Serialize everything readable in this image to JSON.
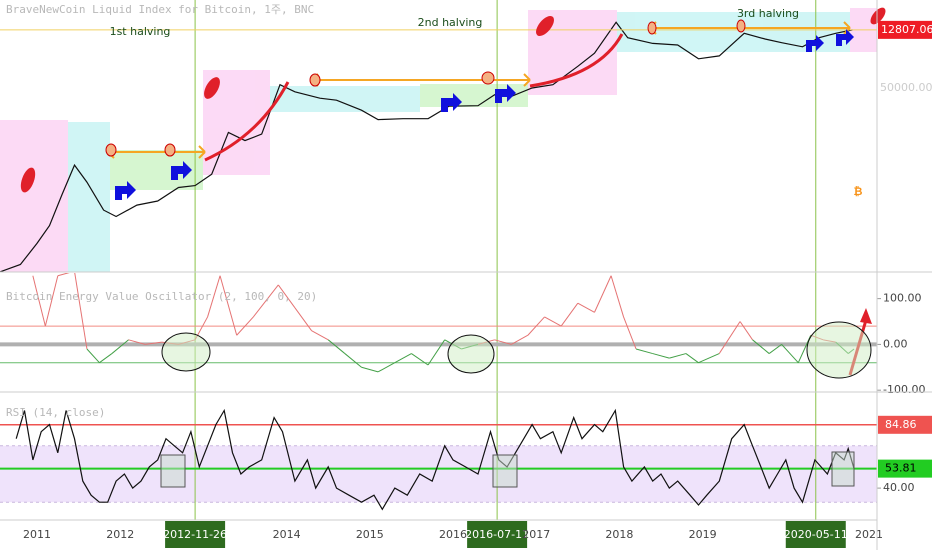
{
  "chart_data": [
    {
      "type": "line",
      "title": "BraveNewCoin Liquid Index for Bitcoin, 1주, BNC",
      "annotations": [
        "1st halving",
        "2nd halving",
        "3rd halving"
      ],
      "axis_note": "50000.00",
      "icon": "₿",
      "log_scale": true,
      "color": "#111111",
      "xlim": [
        2010.555,
        2021.096
      ],
      "ylim": [
        0.25,
        48800
      ],
      "x": [
        2010.55,
        2010.8,
        2011.0,
        2011.15,
        2011.3,
        2011.45,
        2011.6,
        2011.8,
        2011.95,
        2012.2,
        2012.45,
        2012.7,
        2012.9,
        2013.1,
        2013.3,
        2013.5,
        2013.7,
        2013.92,
        2014.1,
        2014.4,
        2014.6,
        2014.9,
        2015.1,
        2015.4,
        2015.7,
        2015.95,
        2016.3,
        2016.5,
        2016.7,
        2016.95,
        2017.2,
        2017.5,
        2017.7,
        2017.96,
        2018.1,
        2018.4,
        2018.7,
        2018.95,
        2019.2,
        2019.5,
        2019.75,
        2019.95,
        2020.2,
        2020.4,
        2020.6,
        2020.8
      ],
      "values": [
        0.25,
        0.35,
        0.9,
        2,
        8,
        30,
        14,
        4,
        3,
        5,
        6,
        11,
        12,
        20,
        130,
        90,
        120,
        1100,
        800,
        600,
        550,
        350,
        230,
        240,
        240,
        420,
        430,
        700,
        650,
        950,
        1100,
        2500,
        4500,
        18000,
        9000,
        7000,
        6500,
        3500,
        4000,
        11000,
        8500,
        7200,
        6000,
        9000,
        11000,
        12807.06
      ]
    },
    {
      "type": "line",
      "title": "Bitcoin Energy Value Oscillator (2, 100, 0, 20)",
      "xlim": [
        2010.555,
        2021.096
      ],
      "ylim": [
        -104,
        156
      ],
      "yticks": [
        {
          "value": 100,
          "label": "100.00"
        },
        {
          "value": 0,
          "label": "0.00"
        },
        {
          "value": -100,
          "label": "-100.00"
        }
      ],
      "line_colors": {
        "above": "#e57373",
        "below": "#43a047"
      },
      "levels": [
        {
          "value": 40,
          "color": "#f28b82"
        },
        {
          "value": 0,
          "color": "#b0b0b0"
        },
        {
          "value": -40,
          "color": "#66bb6a"
        }
      ],
      "x": [
        2010.95,
        2011.1,
        2011.25,
        2011.45,
        2011.6,
        2011.75,
        2011.9,
        2012.1,
        2012.3,
        2012.5,
        2012.7,
        2012.9,
        2013.05,
        2013.2,
        2013.4,
        2013.6,
        2013.9,
        2014.1,
        2014.3,
        2014.5,
        2014.7,
        2014.9,
        2015.1,
        2015.3,
        2015.5,
        2015.7,
        2015.9,
        2016.1,
        2016.3,
        2016.5,
        2016.7,
        2016.9,
        2017.1,
        2017.3,
        2017.5,
        2017.7,
        2017.9,
        2018.05,
        2018.2,
        2018.4,
        2018.6,
        2018.8,
        2018.95,
        2019.2,
        2019.45,
        2019.6,
        2019.8,
        2019.95,
        2020.15,
        2020.3,
        2020.45,
        2020.6,
        2020.75,
        2020.82
      ],
      "values": [
        150,
        40,
        150,
        160,
        -10,
        -40,
        -20,
        10,
        0,
        5,
        0,
        10,
        60,
        150,
        20,
        60,
        130,
        80,
        30,
        10,
        -20,
        -50,
        -60,
        -40,
        -20,
        -45,
        10,
        -10,
        0,
        10,
        0,
        20,
        60,
        40,
        90,
        70,
        150,
        60,
        -10,
        -20,
        -30,
        -20,
        -40,
        -20,
        50,
        10,
        -20,
        0,
        -40,
        20,
        10,
        5,
        -20,
        -10
      ]
    },
    {
      "type": "line",
      "title": "RSI (14, close)",
      "color": "#111111",
      "xlim": [
        2010.555,
        2021.096
      ],
      "ylim": [
        17.4,
        107.4
      ],
      "yticks": [
        {
          "value": 40,
          "label": "40.00"
        }
      ],
      "upper_level": 84.86,
      "upper_color": "#ef5350",
      "last_color": "#22cc22",
      "band": [
        30,
        70
      ],
      "band_color": "#efe3fb",
      "xticks": [
        2011,
        2012,
        2014,
        2015,
        2016,
        2017,
        2018,
        2019,
        2021
      ],
      "x_highlights": [
        {
          "value": 2012.9,
          "label": "2012-11-26"
        },
        {
          "value": 2016.53,
          "label": "2016-07-11"
        },
        {
          "value": 2020.36,
          "label": "2020-05-11"
        }
      ],
      "x": [
        2010.75,
        2010.85,
        2010.95,
        2011.05,
        2011.15,
        2011.25,
        2011.35,
        2011.45,
        2011.55,
        2011.65,
        2011.75,
        2011.85,
        2011.95,
        2012.05,
        2012.15,
        2012.25,
        2012.35,
        2012.45,
        2012.55,
        2012.65,
        2012.75,
        2012.85,
        2012.95,
        2013.05,
        2013.15,
        2013.25,
        2013.35,
        2013.45,
        2013.55,
        2013.7,
        2013.85,
        2013.95,
        2014.1,
        2014.25,
        2014.35,
        2014.5,
        2014.6,
        2014.75,
        2014.9,
        2015.05,
        2015.15,
        2015.3,
        2015.45,
        2015.6,
        2015.75,
        2015.9,
        2016.0,
        2016.15,
        2016.3,
        2016.45,
        2016.55,
        2016.65,
        2016.8,
        2016.95,
        2017.05,
        2017.2,
        2017.3,
        2017.45,
        2017.55,
        2017.7,
        2017.8,
        2017.95,
        2018.05,
        2018.15,
        2018.3,
        2018.4,
        2018.5,
        2018.6,
        2018.7,
        2018.85,
        2018.95,
        2019.05,
        2019.2,
        2019.35,
        2019.5,
        2019.6,
        2019.7,
        2019.8,
        2019.9,
        2020.0,
        2020.1,
        2020.2,
        2020.35,
        2020.5,
        2020.6,
        2020.7,
        2020.75,
        2020.82
      ],
      "values": [
        75,
        95,
        60,
        80,
        85,
        65,
        95,
        75,
        45,
        35,
        30,
        30,
        45,
        50,
        40,
        45,
        55,
        60,
        75,
        70,
        65,
        80,
        55,
        70,
        85,
        95,
        65,
        50,
        55,
        60,
        90,
        80,
        45,
        60,
        40,
        55,
        40,
        35,
        30,
        35,
        25,
        40,
        35,
        50,
        45,
        70,
        60,
        55,
        50,
        80,
        60,
        55,
        70,
        85,
        75,
        80,
        65,
        90,
        75,
        85,
        80,
        95,
        55,
        45,
        55,
        45,
        50,
        40,
        45,
        35,
        28,
        35,
        45,
        75,
        85,
        70,
        55,
        40,
        50,
        60,
        40,
        30,
        60,
        50,
        65,
        60,
        68,
        53.81
      ]
    }
  ]
}
